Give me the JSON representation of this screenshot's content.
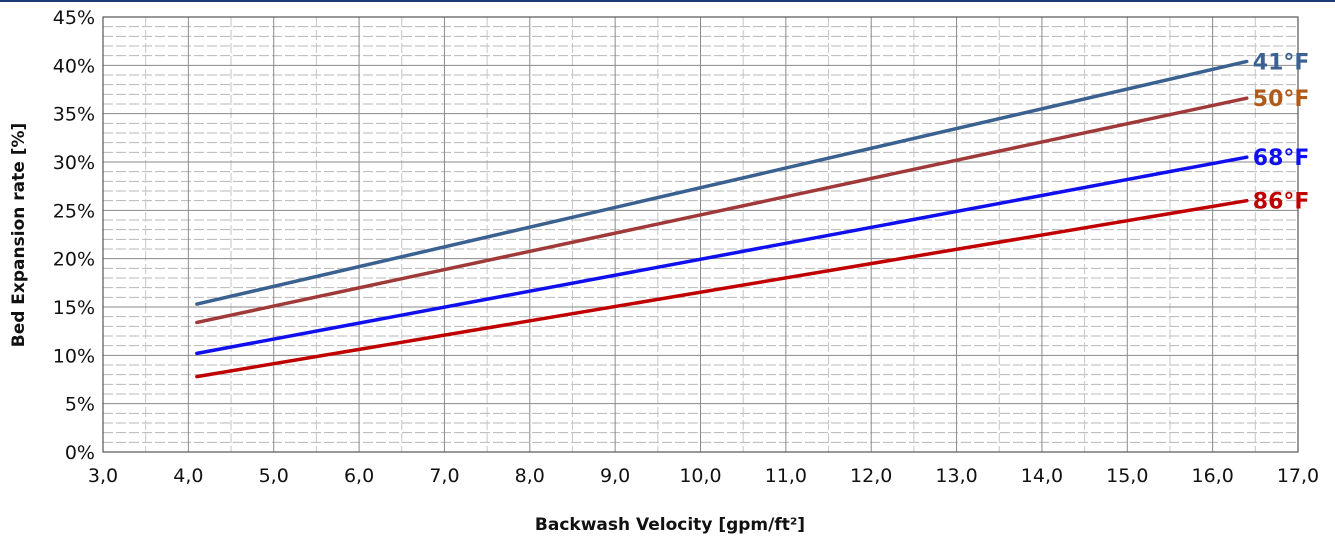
{
  "chart_data": {
    "type": "line",
    "xlabel": "Backwash Velocity [gpm/ft²]",
    "ylabel": "Bed Expansion rate [%]",
    "xlim": [
      3.0,
      17.0
    ],
    "ylim": [
      0,
      45
    ],
    "x_ticks": [
      "3,0",
      "4,0",
      "5,0",
      "6,0",
      "7,0",
      "8,0",
      "9,0",
      "10,0",
      "11,0",
      "12,0",
      "13,0",
      "14,0",
      "15,0",
      "16,0",
      "17,0"
    ],
    "y_ticks": [
      "0%",
      "5%",
      "10%",
      "15%",
      "20%",
      "25%",
      "30%",
      "35%",
      "40%",
      "45%"
    ],
    "grid": "on",
    "series": [
      {
        "name": "41°F",
        "color": "#3a6190",
        "x": [
          4.1,
          16.4
        ],
        "y": [
          15.3,
          40.4
        ]
      },
      {
        "name": "50°F",
        "color": "#a03a3a",
        "x": [
          4.1,
          16.4
        ],
        "y": [
          13.4,
          36.6
        ]
      },
      {
        "name": "68°F",
        "color": "#1010ee",
        "x": [
          4.1,
          16.4
        ],
        "y": [
          10.2,
          30.5
        ]
      },
      {
        "name": "86°F",
        "color": "#c00000",
        "x": [
          4.1,
          16.4
        ],
        "y": [
          7.8,
          26.0
        ]
      }
    ],
    "label_colors": [
      "#3a6190",
      "#b05a1a",
      "#1010ee",
      "#c00000"
    ]
  }
}
